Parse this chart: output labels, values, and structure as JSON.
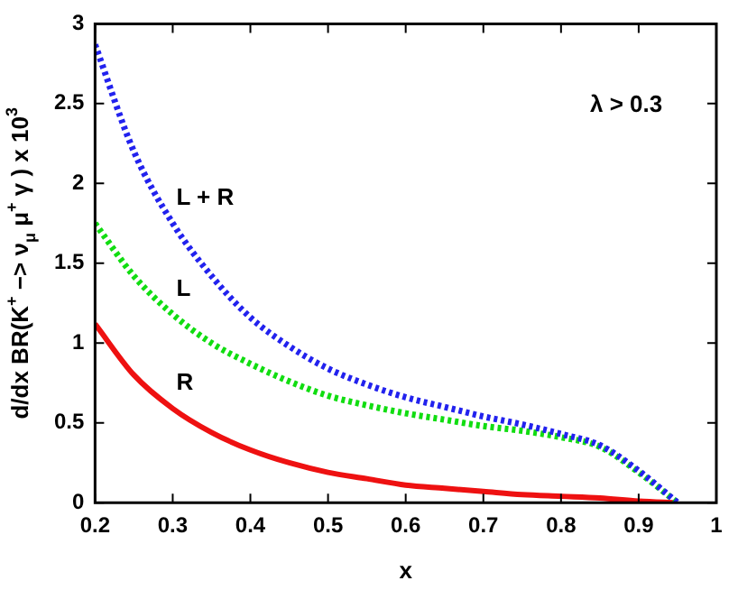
{
  "chart_data": {
    "type": "line",
    "xlabel": "x",
    "ylabel": "d/dx BR(K$^{+}$ −> ν$_{μ}$ μ$^{+}$ γ ) x 10$^{3}$",
    "x": [
      0.2,
      0.25,
      0.3,
      0.35,
      0.4,
      0.45,
      0.5,
      0.55,
      0.6,
      0.65,
      0.7,
      0.75,
      0.8,
      0.85,
      0.9,
      0.95
    ],
    "series": [
      {
        "name": "L + R",
        "color": "#2222ee",
        "line_style": "dotted",
        "values": [
          2.87,
          2.2,
          1.75,
          1.42,
          1.16,
          0.98,
          0.84,
          0.74,
          0.66,
          0.6,
          0.54,
          0.49,
          0.43,
          0.36,
          0.2,
          0
        ]
      },
      {
        "name": "L",
        "color": "#11dd11",
        "line_style": "dotted",
        "values": [
          1.75,
          1.42,
          1.18,
          1.0,
          0.87,
          0.76,
          0.67,
          0.61,
          0.56,
          0.52,
          0.48,
          0.45,
          0.41,
          0.35,
          0.19,
          0
        ]
      },
      {
        "name": "R",
        "color": "#ee1111",
        "line_style": "solid",
        "values": [
          1.12,
          0.8,
          0.59,
          0.44,
          0.33,
          0.25,
          0.19,
          0.15,
          0.11,
          0.09,
          0.07,
          0.05,
          0.04,
          0.03,
          0.01,
          0
        ]
      }
    ],
    "xlim": [
      0.2,
      1
    ],
    "xticks": [
      0.2,
      0.3,
      0.4,
      0.5,
      0.6,
      0.7,
      0.8,
      0.9,
      1
    ],
    "ylim": [
      0,
      3
    ],
    "yticks": [
      0,
      0.5,
      1,
      1.5,
      2,
      2.5,
      3
    ],
    "marker": "none",
    "grid": false,
    "legend": false,
    "annotations": [
      "λ > 0.3"
    ]
  }
}
